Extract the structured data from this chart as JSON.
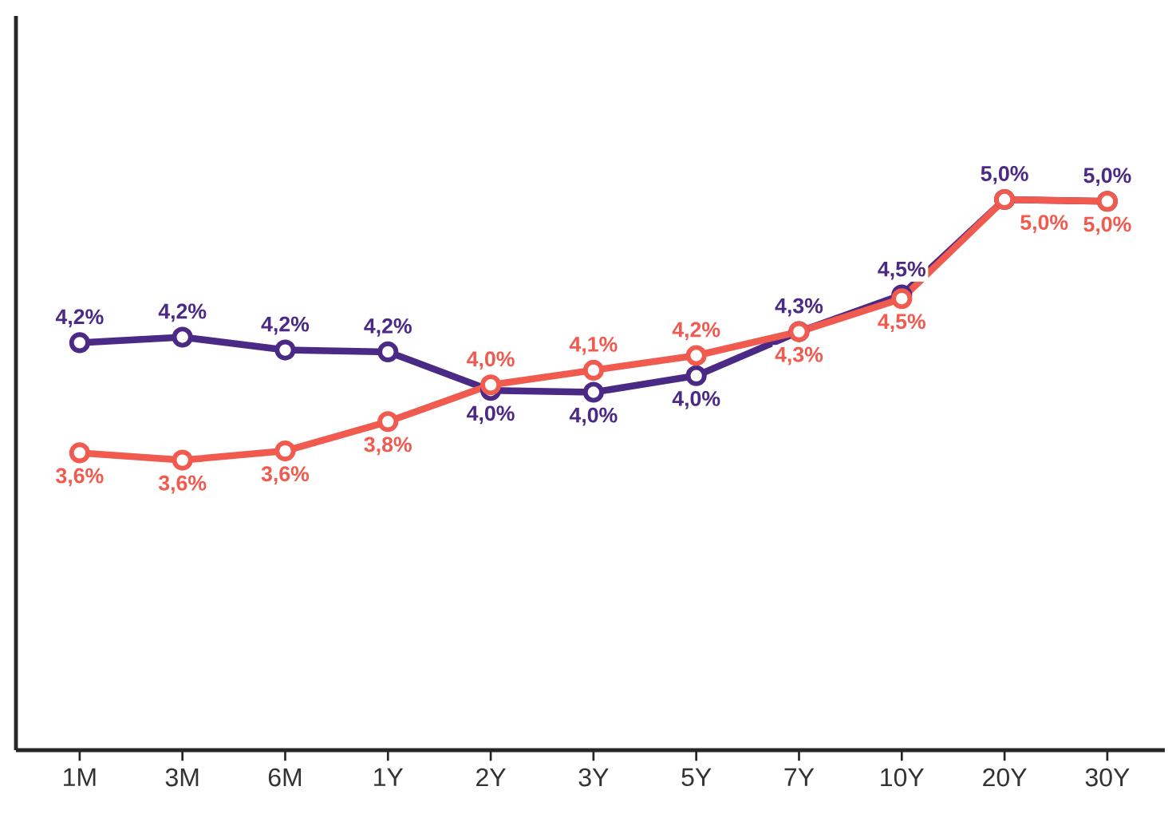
{
  "chart_data": {
    "type": "line",
    "categories": [
      "1M",
      "3M",
      "6M",
      "1Y",
      "2Y",
      "3Y",
      "5Y",
      "7Y",
      "10Y",
      "20Y",
      "30Y"
    ],
    "series": [
      {
        "color": "#4b2a86",
        "values": [
          4.22,
          4.25,
          4.18,
          4.17,
          3.96,
          3.95,
          4.04,
          4.28,
          4.48,
          5.0,
          4.99
        ],
        "value_labels": [
          "4,2%",
          "4,2%",
          "4,2%",
          "4,2%",
          "4,0%",
          "4,0%",
          "4,0%",
          "4,3%",
          "4,5%",
          "5,0%",
          "5,0%"
        ]
      },
      {
        "color": "#f05a4f",
        "values": [
          3.62,
          3.58,
          3.63,
          3.79,
          3.99,
          4.07,
          4.15,
          4.28,
          4.46,
          5.0,
          4.99
        ],
        "value_labels": [
          "3,6%",
          "3,6%",
          "3,6%",
          "3,8%",
          "4,0%",
          "4,1%",
          "4,2%",
          "4,3%",
          "4,5%",
          "5,0%",
          "5,0%"
        ]
      }
    ],
    "ylim": [
      2,
      6
    ],
    "marker": "circle",
    "line_style": "solid",
    "tick_labels": "x"
  }
}
